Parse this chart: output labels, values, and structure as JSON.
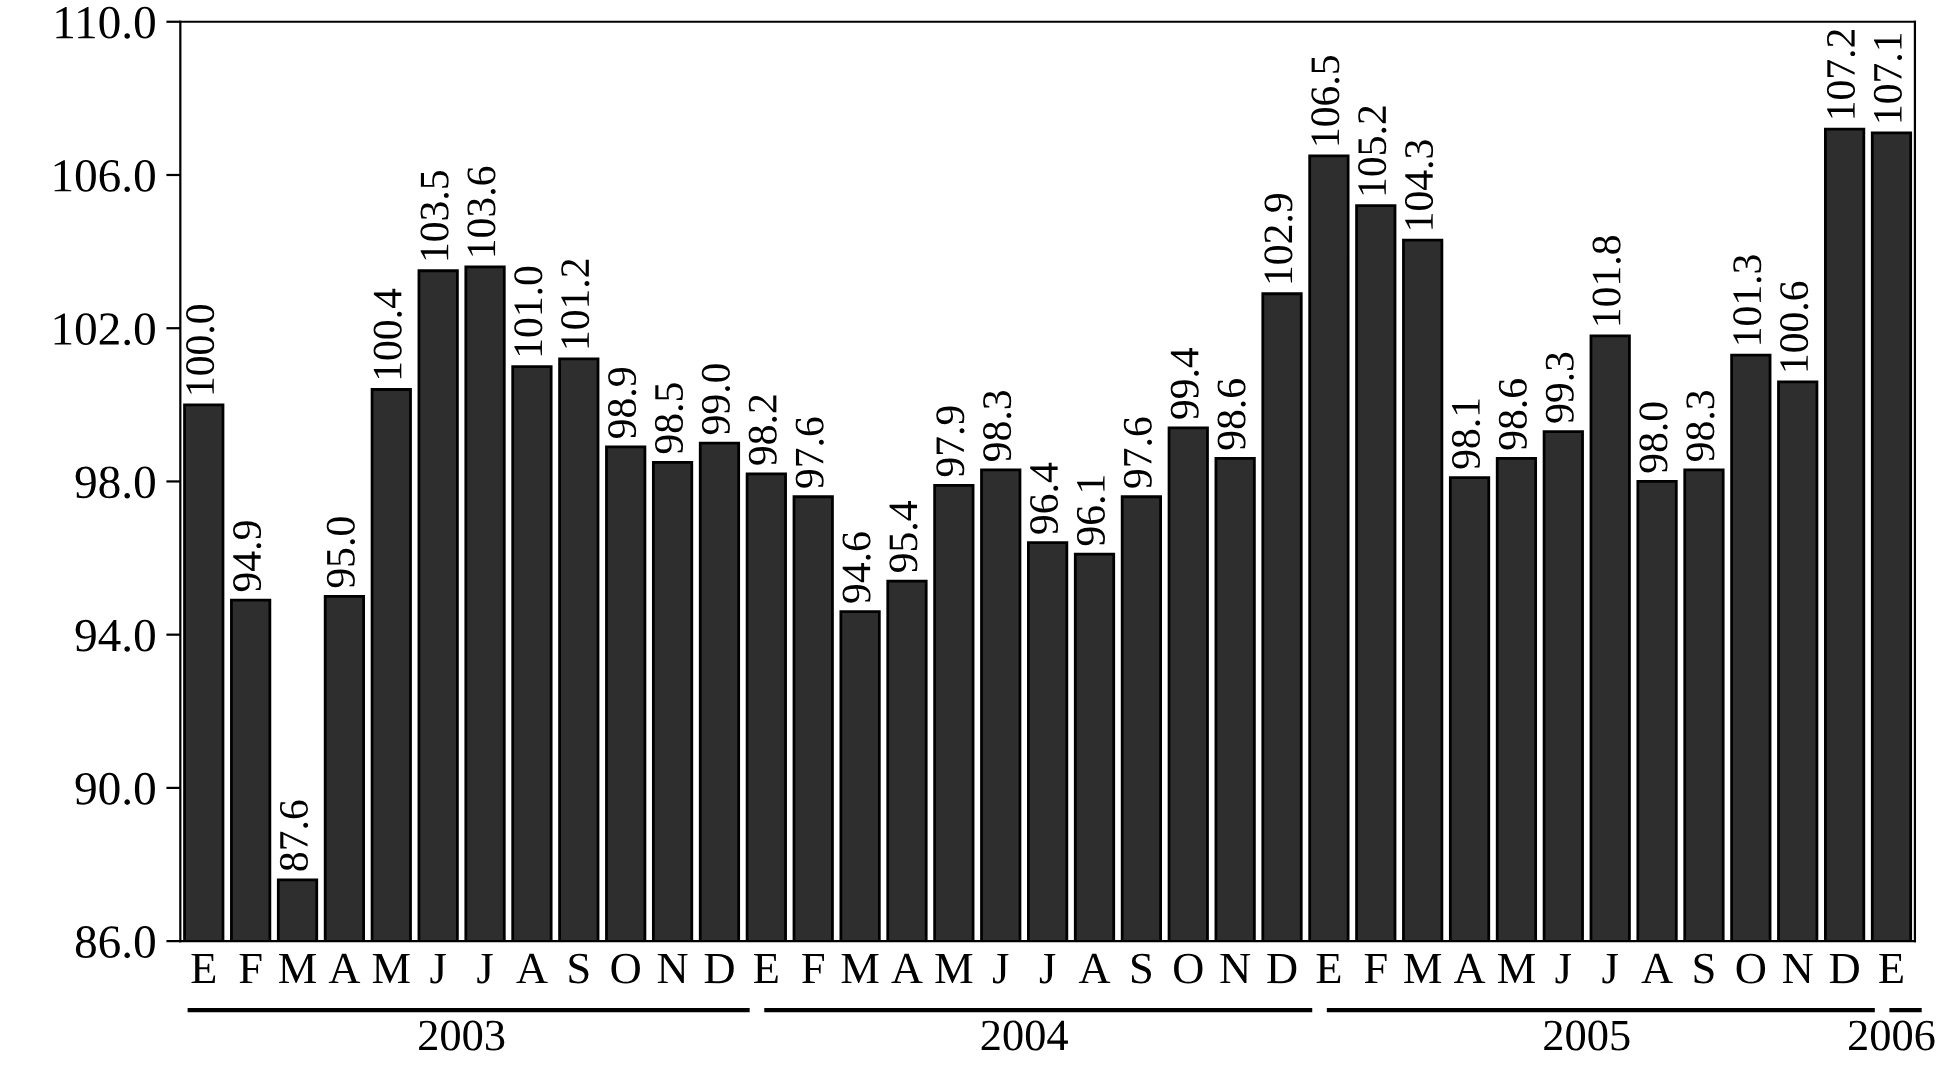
{
  "chart_data": {
    "type": "bar",
    "categories": [
      "E",
      "F",
      "M",
      "A",
      "M",
      "J",
      "J",
      "A",
      "S",
      "O",
      "N",
      "D",
      "E",
      "F",
      "M",
      "A",
      "M",
      "J",
      "J",
      "A",
      "S",
      "O",
      "N",
      "D",
      "E",
      "F",
      "M",
      "A",
      "M",
      "J",
      "J",
      "A",
      "S",
      "O",
      "N",
      "D",
      "E"
    ],
    "values": [
      100.0,
      94.9,
      87.6,
      95.0,
      100.4,
      103.5,
      103.6,
      101.0,
      101.2,
      98.9,
      98.5,
      99.0,
      98.2,
      97.6,
      94.6,
      95.4,
      97.9,
      98.3,
      96.4,
      96.1,
      97.6,
      99.4,
      98.6,
      102.9,
      106.5,
      105.2,
      104.3,
      98.1,
      98.6,
      99.3,
      101.8,
      98.0,
      98.3,
      101.3,
      100.6,
      107.2,
      107.1
    ],
    "value_labels": [
      "100.0",
      "94.9",
      "87.6",
      "95.0",
      "100.4",
      "103.5",
      "103.6",
      "101.0",
      "101.2",
      "98.9",
      "98.5",
      "99.0",
      "98.2",
      "97.6",
      "94.6",
      "95.4",
      "97.9",
      "98.3",
      "96.4",
      "96.1",
      "97.6",
      "99.4",
      "98.6",
      "102.9",
      "106.5",
      "105.2",
      "104.3",
      "98.1",
      "98.6",
      "99.3",
      "101.8",
      "98.0",
      "98.3",
      "101.3",
      "100.6",
      "107.2",
      "107.1"
    ],
    "color": "#2e2e2e",
    "ylim": [
      86,
      110
    ],
    "yticks": [
      {
        "value": 86,
        "label": "86.0"
      },
      {
        "value": 90,
        "label": "90.0"
      },
      {
        "value": 94,
        "label": "94.0"
      },
      {
        "value": 98,
        "label": "98.0"
      },
      {
        "value": 102,
        "label": "102.0"
      },
      {
        "value": 106,
        "label": "106.0"
      },
      {
        "value": 110,
        "label": "110.0"
      }
    ],
    "annotations": [
      "2003",
      "2004",
      "2005",
      "2006"
    ],
    "grid": false,
    "legend": false
  }
}
